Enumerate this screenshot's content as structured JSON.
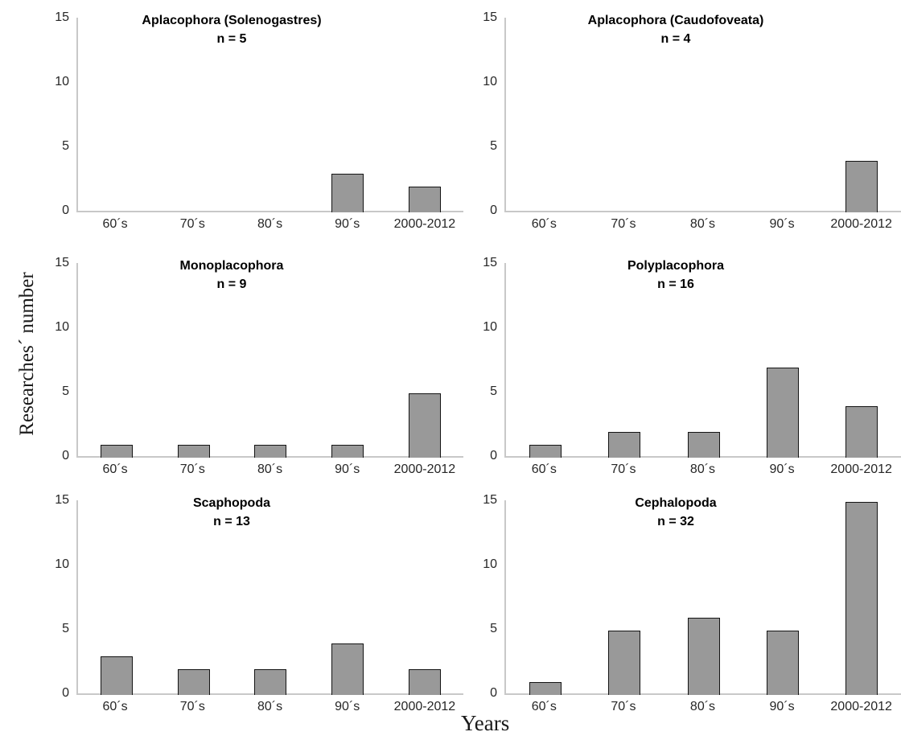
{
  "figure": {
    "ylabel": "Researches´ number",
    "xlabel": "Years",
    "layout": {
      "grid": "2 columns x 3 rows",
      "gridlines": false,
      "legend": false,
      "bar_color": "#999999",
      "bar_border_color": "#141414",
      "axis_color": "#c8c8c8"
    }
  },
  "chart_data": [
    {
      "type": "bar",
      "title": "Aplacophora (Solenogastres)",
      "subtitle": "n = 5",
      "categories": [
        "60´s",
        "70´s",
        "80´s",
        "90´s",
        "2000-2012"
      ],
      "values": [
        0,
        0,
        0,
        3,
        2
      ],
      "xlabel": "Years",
      "ylabel": "Researches´ number",
      "ylim": [
        0,
        15
      ],
      "yticks": [
        0,
        5,
        10,
        15
      ]
    },
    {
      "type": "bar",
      "title": "Aplacophora (Caudofoveata)",
      "subtitle": "n = 4",
      "categories": [
        "60´s",
        "70´s",
        "80´s",
        "90´s",
        "2000-2012"
      ],
      "values": [
        0,
        0,
        0,
        0,
        4
      ],
      "xlabel": "Years",
      "ylabel": "Researches´ number",
      "ylim": [
        0,
        15
      ],
      "yticks": [
        0,
        5,
        10,
        15
      ]
    },
    {
      "type": "bar",
      "title": "Monoplacophora",
      "subtitle": "n = 9",
      "categories": [
        "60´s",
        "70´s",
        "80´s",
        "90´s",
        "2000-2012"
      ],
      "values": [
        1,
        1,
        1,
        1,
        5
      ],
      "xlabel": "Years",
      "ylabel": "Researches´ number",
      "ylim": [
        0,
        15
      ],
      "yticks": [
        0,
        5,
        10,
        15
      ]
    },
    {
      "type": "bar",
      "title": "Polyplacophora",
      "subtitle": "n = 16",
      "categories": [
        "60´s",
        "70´s",
        "80´s",
        "90´s",
        "2000-2012"
      ],
      "values": [
        1,
        2,
        2,
        7,
        4
      ],
      "xlabel": "Years",
      "ylabel": "Researches´ number",
      "ylim": [
        0,
        15
      ],
      "yticks": [
        0,
        5,
        10,
        15
      ]
    },
    {
      "type": "bar",
      "title": "Scaphopoda",
      "subtitle": "n = 13",
      "categories": [
        "60´s",
        "70´s",
        "80´s",
        "90´s",
        "2000-2012"
      ],
      "values": [
        3,
        2,
        2,
        4,
        2
      ],
      "xlabel": "Years",
      "ylabel": "Researches´ number",
      "ylim": [
        0,
        15
      ],
      "yticks": [
        0,
        5,
        10,
        15
      ]
    },
    {
      "type": "bar",
      "title": "Cephalopoda",
      "subtitle": "n = 32",
      "categories": [
        "60´s",
        "70´s",
        "80´s",
        "90´s",
        "2000-2012"
      ],
      "values": [
        1,
        5,
        6,
        5,
        15
      ],
      "xlabel": "Years",
      "ylabel": "Researches´ number",
      "ylim": [
        0,
        15
      ],
      "yticks": [
        0,
        5,
        10,
        15
      ]
    }
  ]
}
